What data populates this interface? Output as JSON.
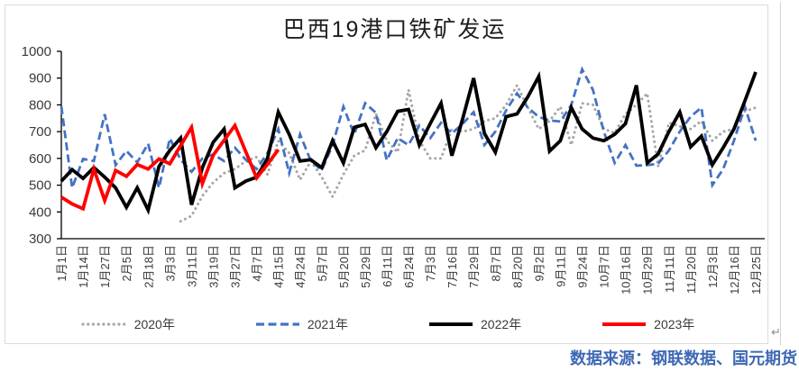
{
  "page": {
    "paragraph_mark": "↵",
    "source_note": "数据来源：钢联数据、国元期货"
  },
  "chart_data": {
    "type": "line",
    "title": "巴西19港口铁矿发运",
    "xlabel": "",
    "ylabel": "",
    "ylim": [
      300,
      1000
    ],
    "y_ticks": [
      300,
      400,
      500,
      600,
      700,
      800,
      900,
      1000
    ],
    "grid": false,
    "legend_position": "bottom",
    "points_per_label": 2,
    "x_tick_labels": [
      "1月1日",
      "1月14日",
      "1月27日",
      "2月5日",
      "2月18日",
      "3月3日",
      "3月11日",
      "3月19日",
      "3月27日",
      "4月7日",
      "4月15日",
      "4月24日",
      "5月7日",
      "5月20日",
      "5月29日",
      "6月11日",
      "6月24日",
      "7月3日",
      "7月16日",
      "7月29日",
      "8月7日",
      "8月20日",
      "9月2日",
      "9月11日",
      "9月24日",
      "10月7日",
      "10月16日",
      "10月29日",
      "11月11日",
      "11月20日",
      "12月3日",
      "12月16日",
      "12月25日"
    ],
    "series": [
      {
        "name": "2020年",
        "style": "dotted",
        "color": "#a6a6a6",
        "values": [
          null,
          null,
          null,
          null,
          null,
          null,
          null,
          null,
          null,
          null,
          null,
          365,
          385,
          460,
          510,
          545,
          560,
          590,
          605,
          540,
          665,
          620,
          520,
          590,
          530,
          457,
          540,
          610,
          630,
          766,
          666,
          623,
          856,
          666,
          600,
          600,
          710,
          700,
          710,
          740,
          750,
          800,
          873,
          790,
          710,
          740,
          793,
          650,
          806,
          800,
          710,
          695,
          766,
          800,
          843,
          570,
          733,
          720,
          710,
          740,
          666,
          700,
          710,
          776,
          790
        ]
      },
      {
        "name": "2021年",
        "style": "dashed",
        "color": "#4472c4",
        "values": [
          795,
          490,
          598,
          590,
          765,
          575,
          628,
          585,
          655,
          490,
          675,
          595,
          550,
          600,
          615,
          590,
          640,
          595,
          560,
          620,
          710,
          545,
          690,
          590,
          556,
          650,
          793,
          690,
          806,
          770,
          593,
          676,
          650,
          723,
          676,
          733,
          693,
          730,
          773,
          650,
          700,
          780,
          843,
          790,
          755,
          742,
          738,
          800,
          933,
          856,
          700,
          583,
          650,
          573,
          575,
          580,
          630,
          700,
          756,
          790,
          500,
          560,
          666,
          793,
          666
        ]
      },
      {
        "name": "2022年",
        "style": "solid",
        "color": "#000000",
        "values": [
          515,
          558,
          525,
          566,
          530,
          490,
          417,
          490,
          407,
          570,
          630,
          676,
          427,
          565,
          660,
          710,
          490,
          515,
          530,
          600,
          773,
          690,
          590,
          595,
          565,
          666,
          583,
          716,
          727,
          640,
          700,
          776,
          783,
          650,
          730,
          806,
          610,
          750,
          900,
          693,
          623,
          756,
          766,
          830,
          906,
          627,
          666,
          790,
          710,
          676,
          666,
          690,
          730,
          873,
          583,
          616,
          700,
          773,
          643,
          683,
          576,
          640,
          710,
          815,
          923
        ]
      },
      {
        "name": "2023年",
        "style": "solid",
        "color": "#ff0000",
        "values": [
          455,
          430,
          412,
          560,
          443,
          555,
          533,
          577,
          560,
          598,
          580,
          648,
          716,
          506,
          612,
          668,
          723,
          625,
          527,
          578,
          633,
          null,
          null,
          null,
          null,
          null,
          null,
          null,
          null,
          null,
          null,
          null,
          null,
          null,
          null,
          null,
          null,
          null,
          null,
          null,
          null,
          null,
          null,
          null,
          null,
          null,
          null,
          null,
          null,
          null,
          null,
          null,
          null,
          null,
          null,
          null,
          null,
          null,
          null,
          null,
          null,
          null,
          null,
          null,
          null
        ]
      }
    ]
  }
}
